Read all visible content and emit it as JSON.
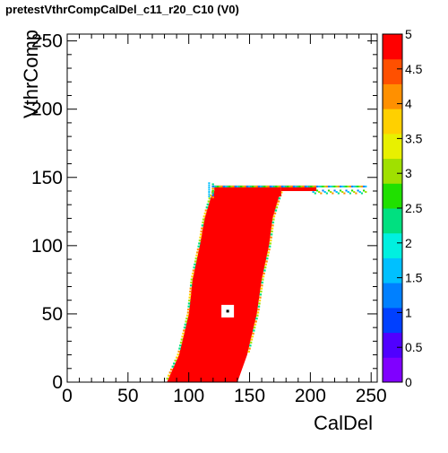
{
  "chart_data": {
    "type": "heatmap",
    "title": "pretestVthrCompCalDel_c11_r20_C10 (V0)",
    "xlabel": "CalDel",
    "ylabel": "VthrComp",
    "xlim": [
      0,
      255
    ],
    "ylim": [
      0,
      255
    ],
    "x_ticks": [
      "0",
      "50",
      "100",
      "150",
      "200",
      "250"
    ],
    "y_ticks": [
      "0",
      "50",
      "100",
      "150",
      "200",
      "250"
    ],
    "zlim": [
      0,
      5
    ],
    "z_ticks": [
      "0",
      "0.5",
      "1",
      "1.5",
      "2",
      "2.5",
      "3",
      "3.5",
      "4",
      "4.5",
      "5"
    ],
    "colormap": [
      "#8000ff",
      "#5000ff",
      "#0040ff",
      "#0080ff",
      "#00c0ff",
      "#00f0e0",
      "#00e080",
      "#20e000",
      "#a0e000",
      "#e8f000",
      "#ffd000",
      "#ff9000",
      "#ff5000",
      "#ff0000"
    ],
    "regions": [
      {
        "description": "main plateau",
        "value": 5,
        "left_edge": [
          [
            0,
            82
          ],
          [
            20,
            92
          ],
          [
            50,
            100
          ],
          [
            75,
            103
          ],
          [
            100,
            109
          ],
          [
            120,
            113
          ],
          [
            135,
            118
          ],
          [
            140,
            121
          ]
        ],
        "right_edge": [
          [
            0,
            140
          ],
          [
            20,
            148
          ],
          [
            50,
            156
          ],
          [
            75,
            160
          ],
          [
            100,
            166
          ],
          [
            120,
            169
          ],
          [
            135,
            174
          ],
          [
            140,
            176
          ]
        ]
      },
      {
        "description": "upper shelf",
        "y_range": [
          135,
          145
        ],
        "x_range": [
          121,
          245
        ],
        "value": 5
      }
    ],
    "grid": false,
    "legend": "colorbar-right",
    "marker": {
      "x": 132,
      "y": 52
    }
  }
}
